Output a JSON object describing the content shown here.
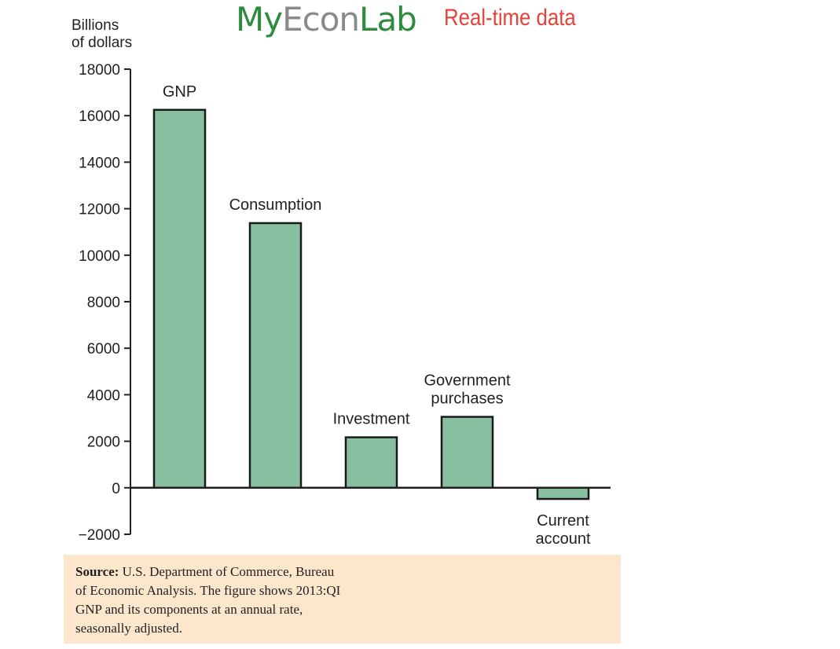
{
  "header": {
    "brand_my": "My",
    "brand_econ": "Econ",
    "brand_lab": "Lab",
    "brand_tagline": "Real-time data"
  },
  "colors": {
    "bar_fill": "#88bfa0",
    "bar_stroke": "#1a1a1a",
    "brand_green": "#2e8b3e",
    "brand_gray": "#8a8a8a",
    "brand_red": "#e8413a",
    "source_bg": "#fce7cc"
  },
  "chart_data": {
    "type": "bar",
    "title": "",
    "ylabel_lines": [
      "Billions",
      "of dollars"
    ],
    "xlabel": "",
    "ylim": [
      -2000,
      18000
    ],
    "yticks": [
      {
        "value": 18000,
        "label": "18000"
      },
      {
        "value": 16000,
        "label": "16000"
      },
      {
        "value": 14000,
        "label": "14000"
      },
      {
        "value": 12000,
        "label": "12000"
      },
      {
        "value": 10000,
        "label": "10000"
      },
      {
        "value": 8000,
        "label": "8000"
      },
      {
        "value": 6000,
        "label": "6000"
      },
      {
        "value": 4000,
        "label": "4000"
      },
      {
        "value": 2000,
        "label": "2000"
      },
      {
        "value": 0,
        "label": "0"
      },
      {
        "value": -2000,
        "label": "−2000"
      }
    ],
    "grid": false,
    "legend": "none",
    "bars": [
      {
        "category_lines": [
          "GNP"
        ],
        "value": 16250
      },
      {
        "category_lines": [
          "Consumption"
        ],
        "value": 11380
      },
      {
        "category_lines": [
          "Investment"
        ],
        "value": 2170
      },
      {
        "category_lines": [
          "Government",
          "purchases"
        ],
        "value": 3050
      },
      {
        "category_lines": [
          "Current",
          "account"
        ],
        "value": -480
      }
    ]
  },
  "source": {
    "label": "Source:",
    "text": " U.S. Department of Commerce, Bureau of Economic Analysis. The figure shows 2013:QI GNP and its components at an annual rate, seasonally adjusted."
  }
}
